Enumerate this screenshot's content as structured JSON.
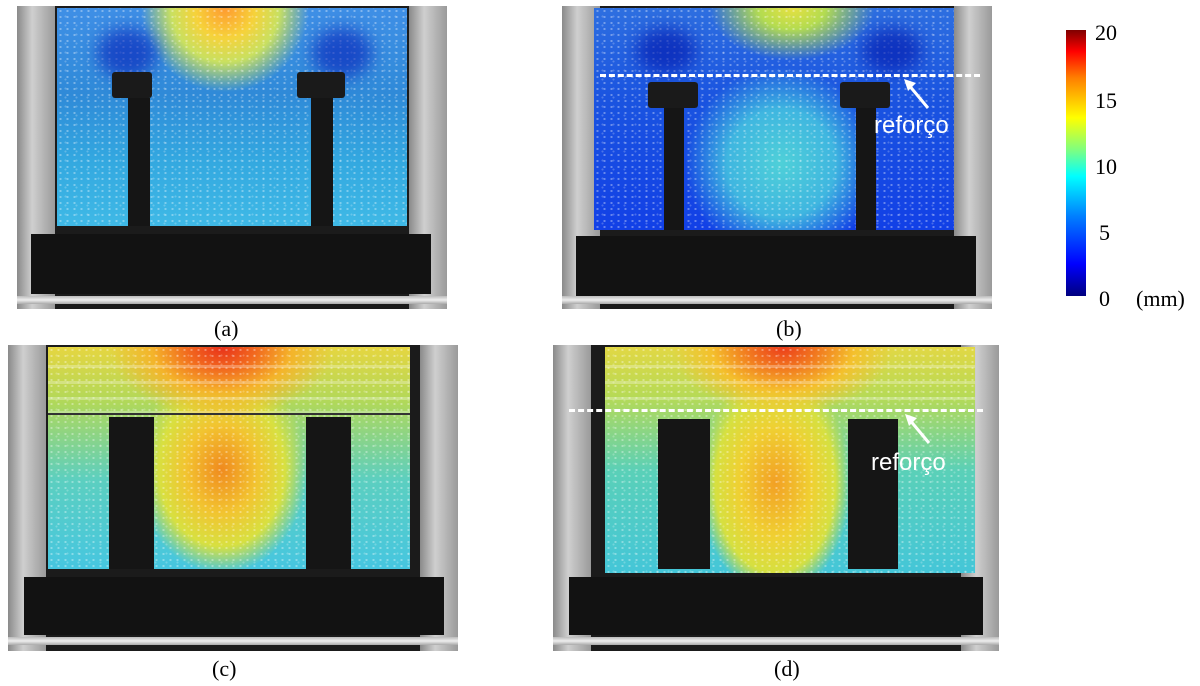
{
  "panels": [
    {
      "caption": "(a)",
      "annotation": ""
    },
    {
      "caption": "(b)",
      "annotation": "reforço"
    },
    {
      "caption": "(c)",
      "annotation": ""
    },
    {
      "caption": "(d)",
      "annotation": "reforço"
    }
  ],
  "colorbar": {
    "ticks": [
      "20",
      "15",
      "10",
      "5",
      "0"
    ],
    "unit": "(mm)",
    "colors": [
      "#00007f",
      "#0000ff",
      "#007fff",
      "#00ffff",
      "#7fff7f",
      "#ffff00",
      "#ff7f00",
      "#ff0000",
      "#7f0000"
    ]
  }
}
